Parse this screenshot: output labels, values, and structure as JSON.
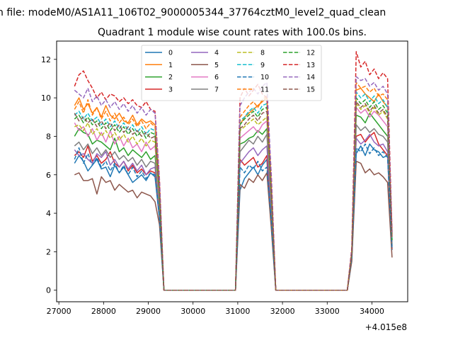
{
  "figure": {
    "suptitle": "n file: modeM0/AS1A11_106T02_9000005344_37764cztM0_level2_quad_clean",
    "title": "Quadrant 1 module wise count rates with 100.0s bins.",
    "offset_label": "+4.015e8"
  },
  "chart_data": {
    "type": "line",
    "title": "Quadrant 1 module wise count rates with 100.0s bins.",
    "xlabel": "",
    "ylabel": "",
    "xlim": [
      26950,
      34800
    ],
    "ylim": [
      -0.6,
      12.95
    ],
    "x_offset": 401500000,
    "xticks": [
      27000,
      28000,
      29000,
      30000,
      31000,
      32000,
      33000,
      34000
    ],
    "yticks": [
      0,
      2,
      4,
      6,
      8,
      10,
      12
    ],
    "x_tick_labels": [
      "27000",
      "28000",
      "29000",
      "30000",
      "31000",
      "32000",
      "33000",
      "34000"
    ],
    "y_tick_labels": [
      "0",
      "2",
      "4",
      "6",
      "8",
      "10",
      "12"
    ],
    "grid": false,
    "legend_position": "top-center",
    "legend_columns": 4,
    "x": [
      27350,
      27450,
      27550,
      27650,
      27750,
      27850,
      27950,
      28050,
      28150,
      28250,
      28350,
      28450,
      28550,
      28650,
      28750,
      28850,
      28950,
      29050,
      29150,
      29250,
      29350,
      30950,
      31050,
      31150,
      31250,
      31350,
      31450,
      31550,
      31650,
      31750,
      31850,
      33450,
      33550,
      33650,
      33750,
      33850,
      33950,
      34050,
      34150,
      34250,
      34350,
      34450
    ],
    "series": [
      {
        "name": "0",
        "color": "#1f77b4",
        "dash": "solid",
        "values": [
          6.6,
          7.0,
          6.7,
          6.2,
          6.5,
          6.8,
          6.3,
          6.4,
          5.9,
          6.5,
          6.1,
          6.4,
          6.0,
          5.6,
          5.8,
          6.0,
          5.7,
          6.1,
          5.9,
          3.7,
          0,
          0,
          5.2,
          5.8,
          6.1,
          6.4,
          6.0,
          6.5,
          6.8,
          3.5,
          0,
          0,
          1.6,
          7.1,
          7.5,
          7.0,
          7.6,
          7.3,
          7.2,
          6.9,
          7.0,
          2.2
        ]
      },
      {
        "name": "1",
        "color": "#ff7f0e",
        "dash": "solid",
        "values": [
          9.6,
          10.0,
          9.4,
          9.7,
          9.2,
          9.5,
          9.0,
          9.6,
          9.1,
          8.9,
          9.2,
          8.8,
          8.7,
          9.1,
          8.6,
          8.9,
          8.7,
          8.8,
          8.6,
          5.5,
          0,
          0,
          8.6,
          9.0,
          9.2,
          9.4,
          9.6,
          9.8,
          10.0,
          5.2,
          0,
          0,
          2.0,
          10.4,
          10.5,
          10.2,
          10.0,
          9.8,
          10.2,
          9.8,
          9.5,
          2.9
        ]
      },
      {
        "name": "2",
        "color": "#2ca02c",
        "dash": "solid",
        "values": [
          8.0,
          8.4,
          8.2,
          8.1,
          7.6,
          7.8,
          7.7,
          7.5,
          7.3,
          7.9,
          7.2,
          7.4,
          7.0,
          7.3,
          7.1,
          6.9,
          7.2,
          6.8,
          7.0,
          4.5,
          0,
          0,
          7.6,
          7.7,
          7.9,
          8.0,
          8.3,
          8.1,
          8.4,
          4.7,
          0,
          0,
          1.8,
          9.1,
          9.0,
          8.7,
          9.2,
          8.9,
          8.6,
          8.3,
          8.0,
          2.4
        ]
      },
      {
        "name": "3",
        "color": "#d62728",
        "dash": "solid",
        "values": [
          7.0,
          7.2,
          6.9,
          7.5,
          6.7,
          7.0,
          6.6,
          6.8,
          7.2,
          6.6,
          6.4,
          6.7,
          6.2,
          6.5,
          6.1,
          6.3,
          6.0,
          6.2,
          6.1,
          3.9,
          0,
          0,
          6.8,
          6.5,
          6.7,
          6.9,
          6.4,
          6.6,
          7.0,
          4.0,
          0,
          0,
          1.7,
          8.0,
          8.1,
          7.7,
          8.0,
          8.2,
          7.6,
          7.3,
          7.0,
          2.1
        ]
      },
      {
        "name": "4",
        "color": "#9467bd",
        "dash": "solid",
        "values": [
          7.3,
          7.0,
          7.1,
          6.8,
          6.6,
          7.1,
          6.9,
          7.2,
          6.5,
          6.8,
          6.4,
          6.7,
          6.3,
          6.6,
          6.2,
          6.5,
          6.0,
          6.3,
          6.4,
          4.0,
          0,
          0,
          6.6,
          6.9,
          7.2,
          7.4,
          7.0,
          7.3,
          7.5,
          4.1,
          0,
          0,
          1.9,
          7.9,
          7.6,
          7.8,
          8.1,
          7.7,
          7.5,
          7.6,
          7.2,
          2.3
        ]
      },
      {
        "name": "5",
        "color": "#8c564b",
        "dash": "solid",
        "values": [
          6.0,
          6.1,
          5.7,
          5.7,
          5.8,
          5.0,
          5.9,
          5.6,
          5.7,
          5.2,
          5.5,
          5.3,
          5.1,
          5.2,
          4.8,
          5.1,
          5.0,
          4.9,
          4.6,
          3.4,
          0,
          0,
          5.5,
          5.3,
          5.8,
          5.6,
          6.0,
          5.7,
          6.1,
          3.2,
          0,
          0,
          1.5,
          6.7,
          6.6,
          6.1,
          6.3,
          6.0,
          6.1,
          5.9,
          5.6,
          1.7
        ]
      },
      {
        "name": "6",
        "color": "#e377c2",
        "dash": "solid",
        "values": [
          8.7,
          8.3,
          8.5,
          8.0,
          8.4,
          7.8,
          8.2,
          7.7,
          8.3,
          7.6,
          8.0,
          7.5,
          7.9,
          7.4,
          7.6,
          7.2,
          7.7,
          7.3,
          7.5,
          4.6,
          0,
          0,
          7.9,
          8.1,
          8.3,
          8.5,
          8.2,
          8.6,
          8.8,
          4.9,
          0,
          0,
          1.9,
          9.5,
          9.2,
          9.4,
          9.0,
          9.3,
          9.1,
          8.8,
          8.5,
          2.5
        ]
      },
      {
        "name": "7",
        "color": "#7f7f7f",
        "dash": "solid",
        "values": [
          7.5,
          7.7,
          7.3,
          7.6,
          7.1,
          7.4,
          7.0,
          7.3,
          6.9,
          7.2,
          6.8,
          7.0,
          6.7,
          6.9,
          6.5,
          6.8,
          6.4,
          6.7,
          6.6,
          4.2,
          0,
          0,
          7.2,
          7.5,
          7.8,
          7.6,
          8.0,
          7.7,
          8.1,
          4.4,
          0,
          0,
          1.8,
          8.6,
          8.3,
          8.5,
          8.2,
          8.4,
          8.1,
          8.0,
          7.7,
          2.3
        ]
      },
      {
        "name": "8",
        "color": "#bcbd22",
        "dash": "dashed",
        "values": [
          8.5,
          8.6,
          8.3,
          8.7,
          8.1,
          8.4,
          8.0,
          8.3,
          7.9,
          8.2,
          7.8,
          8.1,
          7.7,
          8.0,
          7.6,
          7.9,
          7.5,
          7.8,
          7.7,
          4.8,
          0,
          0,
          8.3,
          8.5,
          8.7,
          8.9,
          8.6,
          8.8,
          9.0,
          5.0,
          0,
          0,
          1.9,
          9.7,
          9.4,
          9.6,
          9.2,
          9.5,
          9.1,
          9.3,
          8.9,
          2.6
        ]
      },
      {
        "name": "9",
        "color": "#17becf",
        "dash": "dashed",
        "values": [
          9.1,
          9.3,
          8.9,
          9.2,
          8.8,
          9.0,
          8.6,
          8.9,
          8.5,
          8.8,
          8.4,
          8.7,
          8.3,
          8.6,
          8.2,
          8.5,
          8.1,
          8.4,
          8.3,
          5.1,
          0,
          0,
          8.8,
          9.0,
          9.3,
          9.5,
          9.2,
          9.6,
          9.7,
          5.3,
          0,
          0,
          2.0,
          10.3,
          10.0,
          10.2,
          9.8,
          10.1,
          9.7,
          9.9,
          9.5,
          2.7
        ]
      },
      {
        "name": "10",
        "color": "#1f77b4",
        "dash": "dashed",
        "values": [
          6.8,
          7.4,
          6.6,
          7.1,
          6.5,
          6.9,
          6.4,
          6.7,
          6.2,
          6.6,
          6.1,
          6.5,
          6.0,
          6.4,
          5.9,
          6.2,
          5.8,
          6.1,
          6.0,
          3.8,
          0,
          0,
          6.4,
          6.1,
          6.5,
          6.3,
          6.7,
          6.2,
          6.4,
          3.6,
          0,
          0,
          1.7,
          7.4,
          7.2,
          7.6,
          7.1,
          7.4,
          7.0,
          7.2,
          6.9,
          2.1
        ]
      },
      {
        "name": "11",
        "color": "#ff7f0e",
        "dash": "dashed",
        "values": [
          9.4,
          9.8,
          9.2,
          9.9,
          9.1,
          9.5,
          8.9,
          9.3,
          8.8,
          9.2,
          8.7,
          9.0,
          8.6,
          8.9,
          8.5,
          8.8,
          8.4,
          8.7,
          8.5,
          5.3,
          0,
          0,
          9.0,
          9.3,
          9.6,
          9.8,
          9.5,
          9.9,
          10.1,
          5.5,
          0,
          0,
          2.0,
          10.8,
          10.5,
          10.6,
          10.3,
          10.5,
          10.1,
          10.2,
          9.9,
          2.8
        ]
      },
      {
        "name": "12",
        "color": "#2ca02c",
        "dash": "dashed",
        "values": [
          8.9,
          9.1,
          8.7,
          9.0,
          8.6,
          8.8,
          8.4,
          8.7,
          8.3,
          8.6,
          8.2,
          8.5,
          8.1,
          8.4,
          8.0,
          8.3,
          7.9,
          8.2,
          8.1,
          5.0,
          0,
          0,
          8.6,
          8.9,
          9.1,
          9.3,
          9.0,
          9.4,
          9.5,
          5.2,
          0,
          0,
          2.0,
          10.0,
          9.7,
          9.9,
          9.5,
          9.8,
          9.4,
          9.6,
          9.2,
          2.6
        ]
      },
      {
        "name": "13",
        "color": "#d62728",
        "dash": "dashed",
        "values": [
          10.6,
          11.2,
          11.4,
          10.9,
          10.5,
          10.0,
          10.3,
          9.9,
          10.2,
          10.1,
          9.8,
          10.0,
          9.7,
          9.9,
          9.6,
          9.5,
          9.8,
          9.4,
          9.3,
          5.8,
          0,
          0,
          10.0,
          10.5,
          10.1,
          10.4,
          10.7,
          10.2,
          10.0,
          6.0,
          0,
          0,
          2.2,
          12.4,
          11.6,
          11.9,
          11.2,
          11.5,
          11.0,
          11.3,
          11.0,
          3.0
        ]
      },
      {
        "name": "14",
        "color": "#9467bd",
        "dash": "dashed",
        "values": [
          10.4,
          10.2,
          10.0,
          10.5,
          9.8,
          10.1,
          9.6,
          9.9,
          9.5,
          9.8,
          9.4,
          9.7,
          9.3,
          9.6,
          9.2,
          9.5,
          9.1,
          9.4,
          9.2,
          5.7,
          0,
          0,
          9.6,
          10.0,
          10.3,
          10.5,
          10.2,
          10.6,
          10.8,
          5.9,
          0,
          0,
          2.1,
          11.1,
          10.9,
          11.0,
          10.6,
          10.8,
          10.4,
          10.6,
          10.2,
          3.0
        ]
      },
      {
        "name": "15",
        "color": "#8c564b",
        "dash": "dashed",
        "values": [
          9.2,
          8.8,
          9.0,
          8.7,
          8.9,
          8.5,
          8.8,
          8.4,
          8.7,
          8.3,
          8.6,
          8.2,
          8.5,
          8.1,
          8.3,
          8.0,
          8.2,
          7.9,
          8.0,
          5.0,
          0,
          0,
          8.4,
          8.6,
          8.9,
          9.1,
          8.8,
          9.2,
          9.3,
          5.1,
          0,
          0,
          1.9,
          9.8,
          9.5,
          9.7,
          9.3,
          9.6,
          9.2,
          9.4,
          9.0,
          2.7
        ]
      }
    ]
  }
}
